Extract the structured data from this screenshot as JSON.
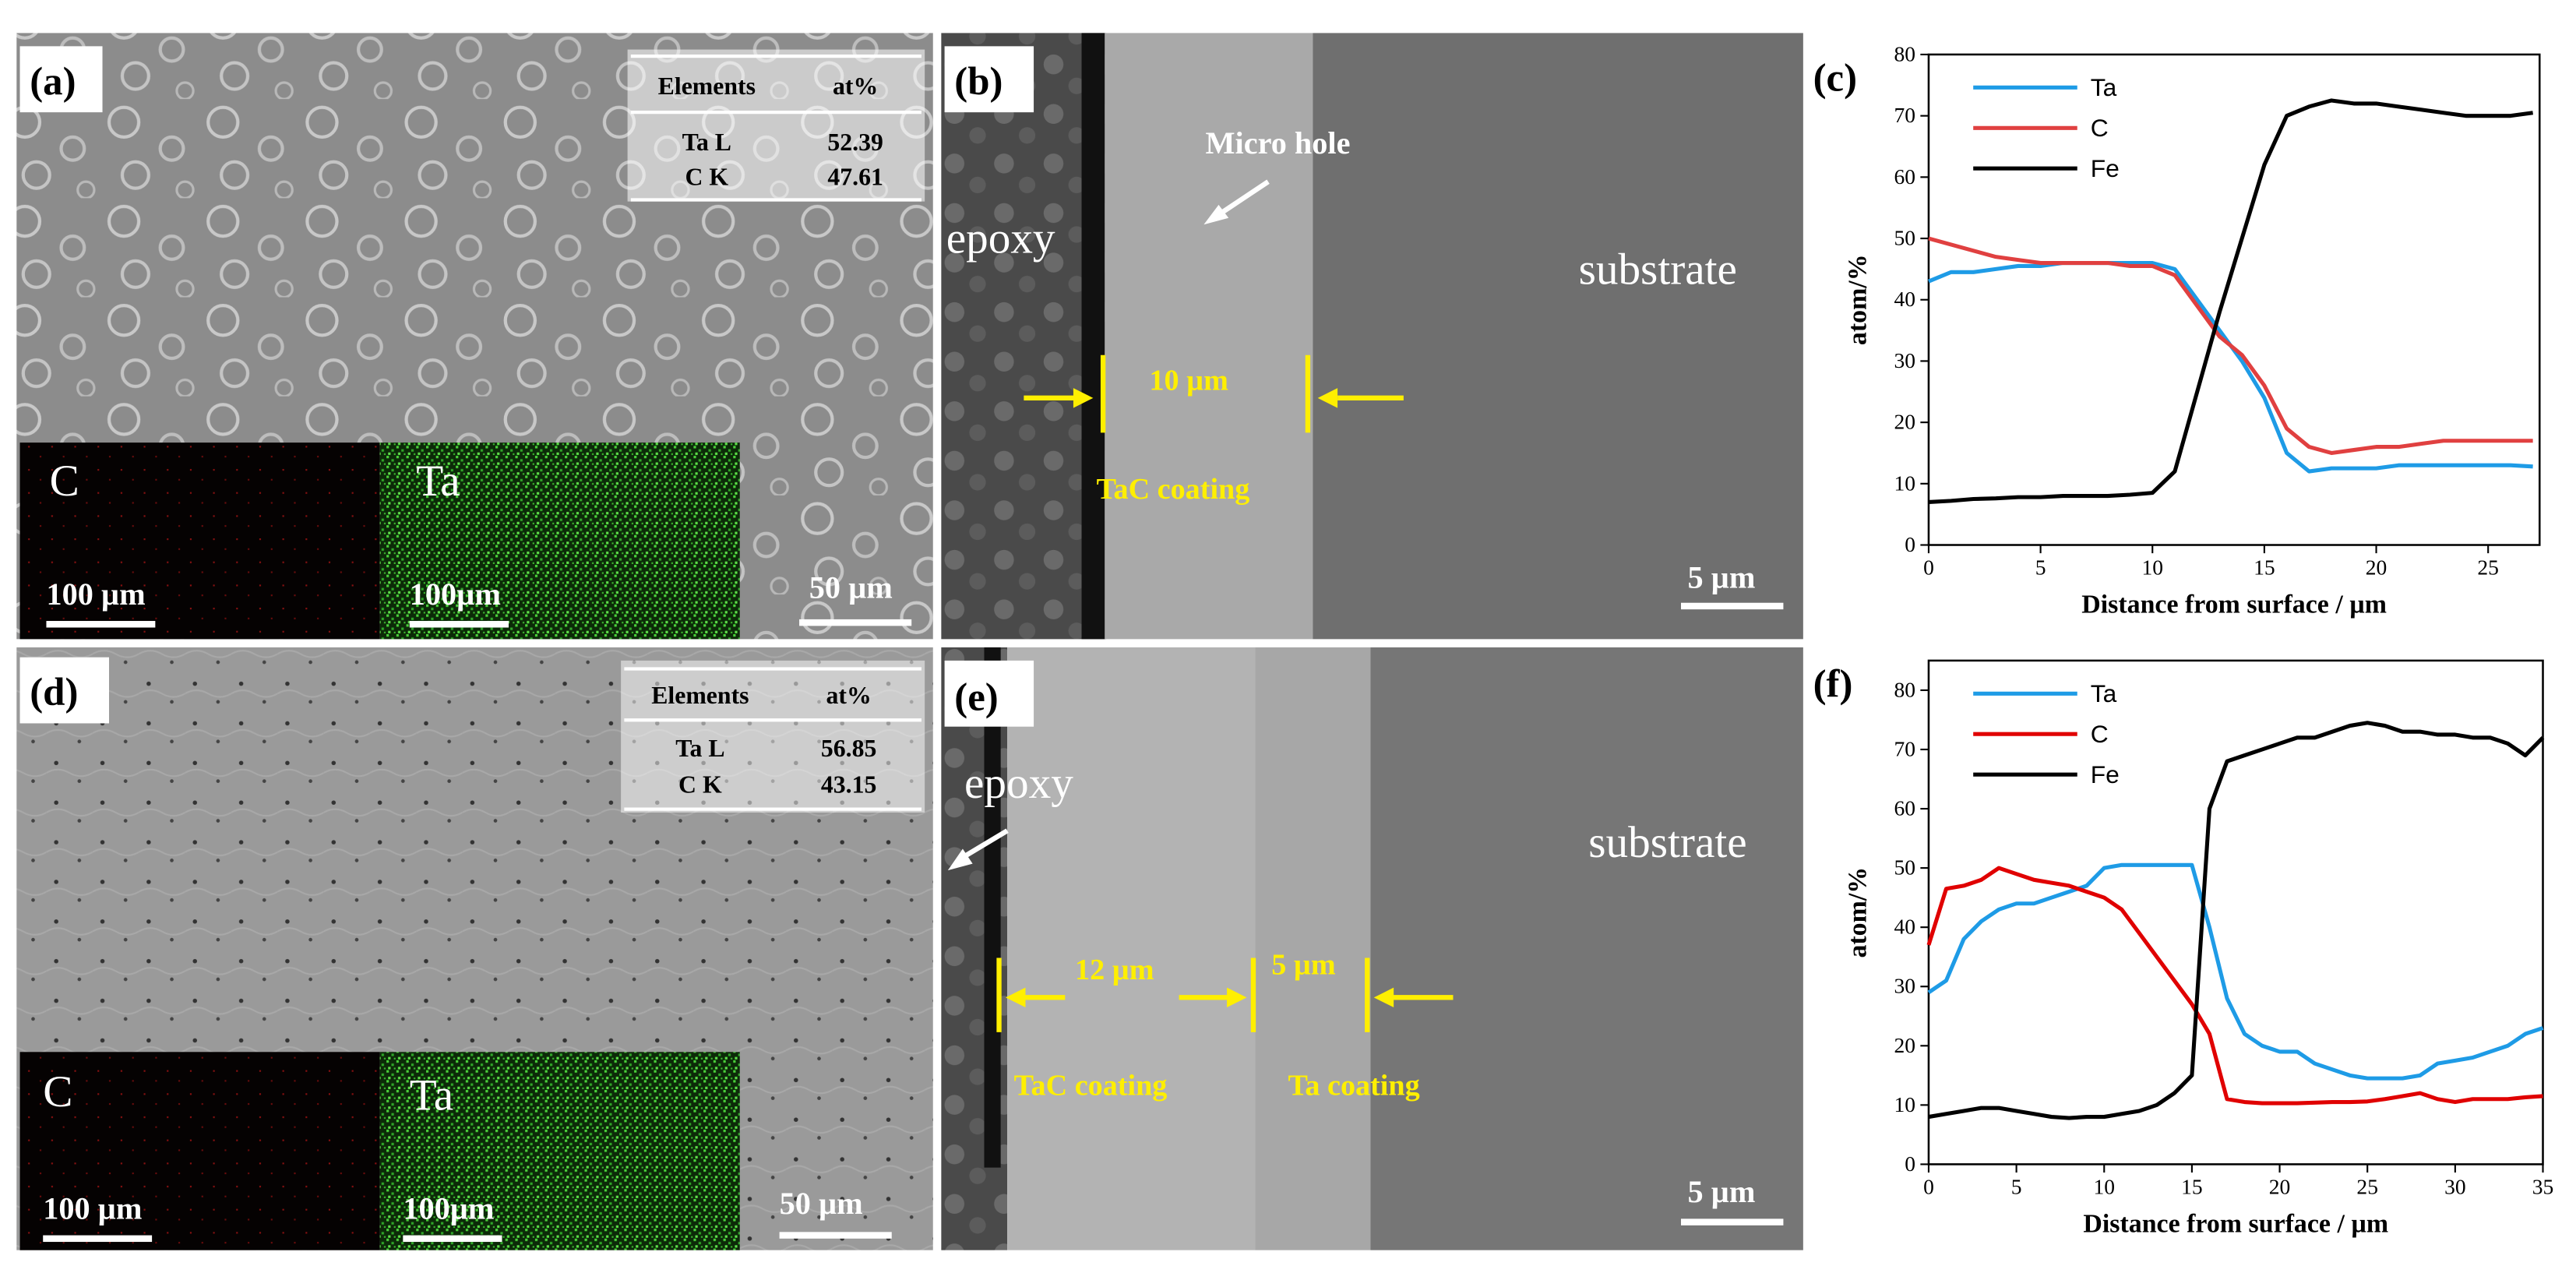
{
  "micrographs": [
    {
      "label": "(a)",
      "table": {
        "header": [
          "Elements",
          "at%"
        ],
        "rows": [
          [
            "Ta L",
            52.39
          ],
          [
            "C K",
            47.61
          ]
        ]
      },
      "maps": [
        {
          "element": "C",
          "scale_bar": "100 µm"
        },
        {
          "element": "Ta",
          "scale_bar": "100µm"
        }
      ],
      "scale_bar": "50 µm"
    },
    {
      "label": "(b)",
      "regions": [
        "epoxy",
        "substrate"
      ],
      "annotations": [
        "Micro hole",
        "10 µm",
        "TaC coating"
      ],
      "scale_bar": "5 µm"
    },
    {
      "label": "(d)",
      "table": {
        "header": [
          "Elements",
          "at%"
        ],
        "rows": [
          [
            "Ta L",
            56.85
          ],
          [
            "C K",
            43.15
          ]
        ]
      },
      "maps": [
        {
          "element": "C",
          "scale_bar": "100 µm"
        },
        {
          "element": "Ta",
          "scale_bar": "100µm"
        }
      ],
      "scale_bar": "50 µm"
    },
    {
      "label": "(e)",
      "regions": [
        "epoxy",
        "substrate"
      ],
      "annotations": [
        "12 µm",
        "5 µm",
        "TaC coating",
        "Ta coating"
      ],
      "scale_bar": "5 µm"
    }
  ],
  "chart_data": [
    {
      "type": "line",
      "label": "(c)",
      "x_label": "Distance from surface / µm",
      "y_label": "atom/%",
      "x": [
        0,
        1,
        2,
        3,
        4,
        5,
        6,
        7,
        8,
        9,
        10,
        11,
        12,
        13,
        14,
        15,
        16,
        17,
        18,
        19,
        20,
        21,
        22,
        23,
        24,
        25,
        26,
        27
      ],
      "series": [
        {
          "name": "Ta",
          "color": "#1e9be6",
          "values": [
            43,
            44.5,
            44.5,
            45,
            45.5,
            45.5,
            46,
            46,
            46,
            46,
            46,
            45,
            40,
            35,
            30,
            24,
            15,
            12,
            12.5,
            12.5,
            12.5,
            13,
            13,
            13,
            13,
            13,
            13,
            12.8
          ]
        },
        {
          "name": "C",
          "color": "#e04040",
          "values": [
            50,
            49,
            48,
            47,
            46.5,
            46,
            46,
            46,
            46,
            45.5,
            45.5,
            44,
            39,
            34,
            31,
            26,
            19,
            16,
            15,
            15.5,
            16,
            16,
            16.5,
            17,
            17,
            17,
            17,
            17
          ]
        },
        {
          "name": "Fe",
          "color": "#000000",
          "values": [
            7,
            7.2,
            7.5,
            7.6,
            7.8,
            7.8,
            8,
            8,
            8,
            8.2,
            8.5,
            12,
            25,
            38,
            50,
            62,
            70,
            71.5,
            72.5,
            72,
            72,
            71.5,
            71,
            70.5,
            70,
            70,
            70,
            70.5
          ]
        }
      ],
      "xlim": [
        0,
        27.3
      ],
      "xticks": [
        0,
        5,
        10,
        15,
        20,
        25
      ],
      "ylim": [
        0,
        80
      ],
      "yticks": [
        0,
        10,
        20,
        30,
        40,
        50,
        60,
        70,
        80
      ],
      "legend": "upper left"
    },
    {
      "type": "line",
      "label": "(f)",
      "x_label": "Distance from surface / µm",
      "y_label": "atom/%",
      "x": [
        0,
        1,
        2,
        3,
        4,
        5,
        6,
        7,
        8,
        9,
        10,
        11,
        12,
        13,
        14,
        15,
        16,
        17,
        18,
        19,
        20,
        21,
        22,
        23,
        24,
        25,
        26,
        27,
        28,
        29,
        30,
        31,
        32,
        33,
        34,
        35
      ],
      "series": [
        {
          "name": "Ta",
          "color": "#1e9be6",
          "values": [
            29,
            31,
            38,
            41,
            43,
            44,
            44,
            45,
            46,
            47,
            50,
            50.5,
            50.5,
            50.5,
            50.5,
            50.5,
            40,
            28,
            22,
            20,
            19,
            19,
            17,
            16,
            15,
            14.5,
            14.5,
            14.5,
            15,
            17,
            17.5,
            18,
            19,
            20,
            22,
            23
          ]
        },
        {
          "name": "C",
          "color": "#e00000",
          "values": [
            37,
            46.5,
            47,
            48,
            50,
            49,
            48,
            47.5,
            47,
            46,
            45,
            43,
            39,
            35,
            31,
            27,
            22,
            11,
            10.5,
            10.3,
            10.3,
            10.3,
            10.4,
            10.5,
            10.5,
            10.6,
            11,
            11.5,
            12,
            11,
            10.5,
            11,
            11,
            11,
            11.3,
            11.5
          ]
        },
        {
          "name": "Fe",
          "color": "#000000",
          "values": [
            8,
            8.5,
            9,
            9.5,
            9.5,
            9,
            8.5,
            8,
            7.8,
            8,
            8,
            8.5,
            9,
            10,
            12,
            15,
            60,
            68,
            69,
            70,
            71,
            72,
            72,
            73,
            74,
            74.5,
            74,
            73,
            73,
            72.5,
            72.5,
            72,
            72,
            71,
            69,
            72
          ]
        }
      ],
      "xlim": [
        0,
        35
      ],
      "xticks": [
        0,
        5,
        10,
        15,
        20,
        25,
        30,
        35
      ],
      "ylim": [
        0,
        85
      ],
      "yticks": [
        0,
        10,
        20,
        30,
        40,
        50,
        60,
        70,
        80
      ],
      "legend": "upper left"
    }
  ]
}
